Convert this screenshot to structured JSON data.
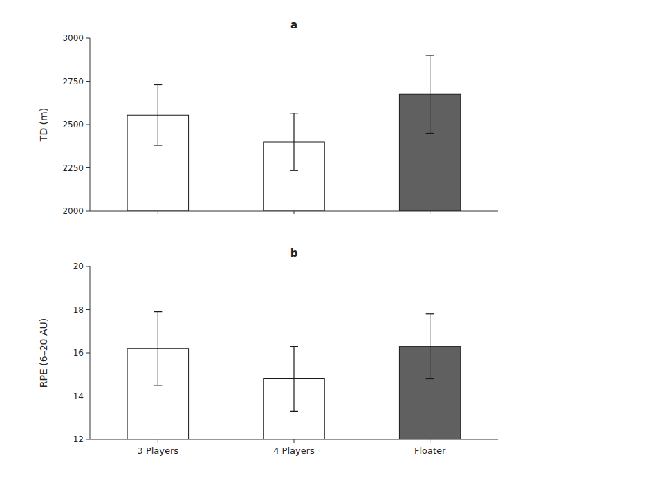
{
  "chart_data": [
    {
      "type": "bar",
      "title": "a",
      "categories": [
        "3 Players",
        "4 Players",
        "Floater"
      ],
      "values": [
        2555,
        2400,
        2675
      ],
      "errors": [
        175,
        165,
        225
      ],
      "colors": [
        "#ffffff",
        "#ffffff",
        "#606060"
      ],
      "y_label": "TD (m)",
      "ylim": [
        2000,
        3000
      ],
      "yticks": [
        2000,
        2250,
        2500,
        2750,
        3000
      ],
      "tick_labels": "y",
      "grid": false
    },
    {
      "type": "bar",
      "title": "b",
      "categories": [
        "3 Players",
        "4 Players",
        "Floater"
      ],
      "values": [
        16.2,
        14.8,
        16.3
      ],
      "errors": [
        1.7,
        1.5,
        1.5
      ],
      "colors": [
        "#ffffff",
        "#ffffff",
        "#606060"
      ],
      "y_label": "RPE (6–20 AU)",
      "ylim": [
        12,
        20
      ],
      "yticks": [
        12,
        14,
        16,
        18,
        20
      ],
      "grid": false
    }
  ]
}
